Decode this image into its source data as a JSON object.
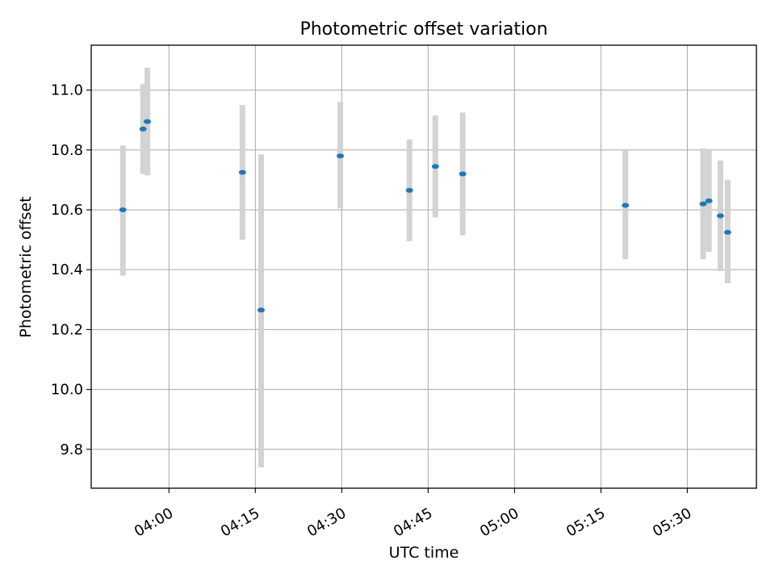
{
  "chart_data": {
    "type": "scatter",
    "title": "Photometric offset variation",
    "xlabel": "UTC time",
    "ylabel": "Photometric offset",
    "x_unit": "time",
    "xlim": [
      "03:46:30",
      "05:42:00"
    ],
    "ylim": [
      9.67,
      11.15
    ],
    "xticks": [
      "04:00",
      "04:15",
      "04:30",
      "04:45",
      "05:00",
      "05:15",
      "05:30"
    ],
    "yticks": [
      "9.8",
      "10.0",
      "10.2",
      "10.4",
      "10.6",
      "10.8",
      "11.0"
    ],
    "grid": true,
    "marker_color": "#1f77b4",
    "errorbar_color": "#d3d3d3",
    "series": [
      {
        "points": [
          {
            "x": "03:52:00",
            "y": 10.6,
            "ylow": 10.38,
            "yhigh": 10.815
          },
          {
            "x": "03:55:30",
            "y": 10.87,
            "ylow": 10.72,
            "yhigh": 11.02
          },
          {
            "x": "03:56:15",
            "y": 10.895,
            "ylow": 10.715,
            "yhigh": 11.075
          },
          {
            "x": "04:12:45",
            "y": 10.725,
            "ylow": 10.5,
            "yhigh": 10.95
          },
          {
            "x": "04:16:00",
            "y": 10.265,
            "ylow": 9.74,
            "yhigh": 10.785
          },
          {
            "x": "04:29:45",
            "y": 10.78,
            "ylow": 10.605,
            "yhigh": 10.96
          },
          {
            "x": "04:41:45",
            "y": 10.665,
            "ylow": 10.495,
            "yhigh": 10.835
          },
          {
            "x": "04:46:15",
            "y": 10.745,
            "ylow": 10.575,
            "yhigh": 10.915
          },
          {
            "x": "04:51:00",
            "y": 10.72,
            "ylow": 10.515,
            "yhigh": 10.925
          },
          {
            "x": "05:19:15",
            "y": 10.615,
            "ylow": 10.435,
            "yhigh": 10.8
          },
          {
            "x": "05:32:45",
            "y": 10.62,
            "ylow": 10.435,
            "yhigh": 10.805
          },
          {
            "x": "05:33:45",
            "y": 10.63,
            "ylow": 10.46,
            "yhigh": 10.8
          },
          {
            "x": "05:35:45",
            "y": 10.58,
            "ylow": 10.395,
            "yhigh": 10.765
          },
          {
            "x": "05:37:00",
            "y": 10.525,
            "ylow": 10.355,
            "yhigh": 10.7
          }
        ]
      }
    ]
  }
}
